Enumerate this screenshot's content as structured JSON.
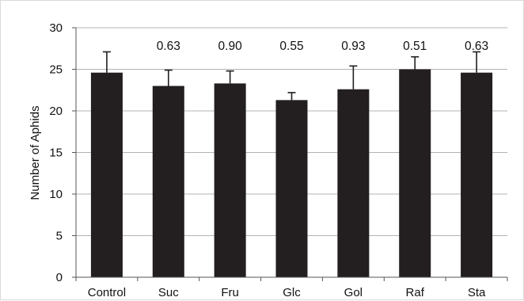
{
  "chart_data": {
    "type": "bar",
    "title": "",
    "xlabel": "",
    "ylabel": "Number of Aphids",
    "ylim": [
      0,
      30
    ],
    "yticks": [
      0,
      5,
      10,
      15,
      20,
      25,
      30
    ],
    "grid": "horizontal",
    "categories": [
      "Control",
      "Suc",
      "Fru",
      "Glc",
      "Gol",
      "Raf",
      "Sta"
    ],
    "values": [
      24.6,
      23.0,
      23.3,
      21.3,
      22.6,
      25.0,
      24.6
    ],
    "error_upper": [
      2.5,
      1.9,
      1.5,
      0.9,
      2.8,
      1.5,
      2.5
    ],
    "annotations": [
      "",
      "0.63",
      "0.90",
      "0.55",
      "0.93",
      "0.51",
      "0.63"
    ],
    "bar_color": "#231f20",
    "grid_color": "#b3b3b3"
  }
}
